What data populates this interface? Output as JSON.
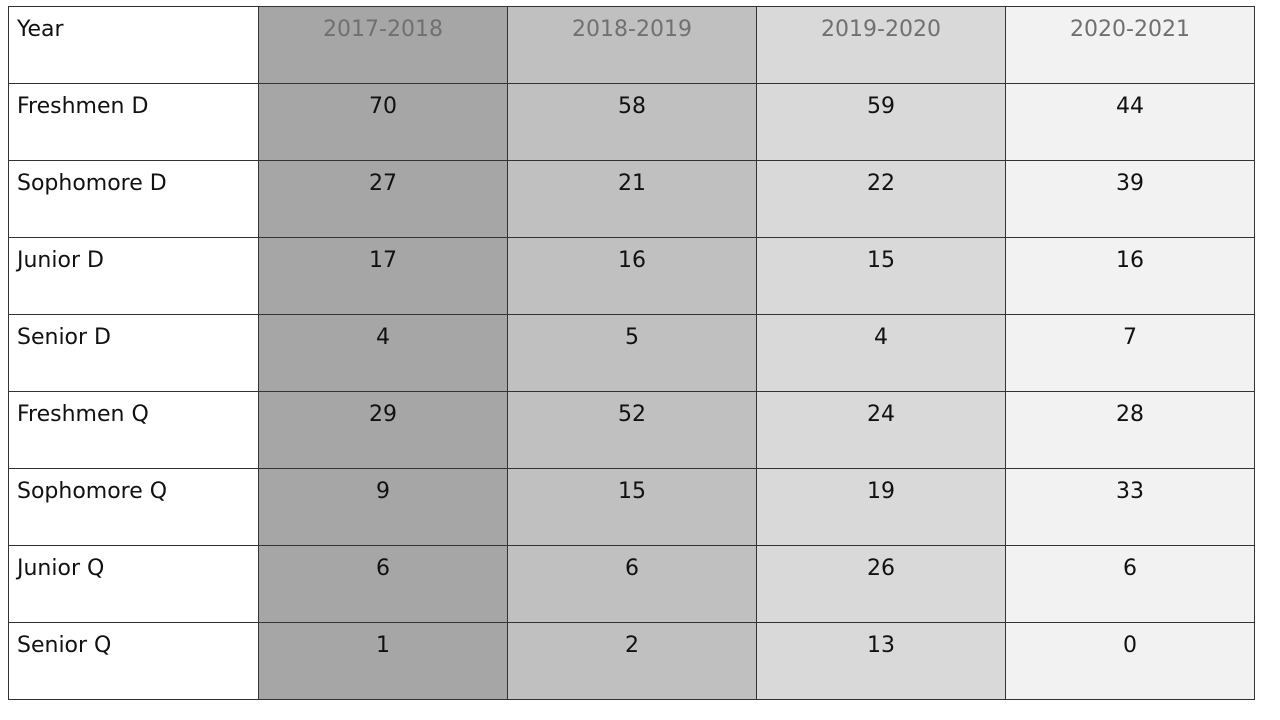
{
  "chart_data": {
    "type": "table",
    "row_header_label": "Year",
    "columns": [
      "2017-2018",
      "2018-2019",
      "2019-2020",
      "2020-2021"
    ],
    "column_colors": [
      "#a6a6a6",
      "#c0c0c0",
      "#d9d9d9",
      "#f2f2f2"
    ],
    "rows": [
      {
        "label": "Freshmen D",
        "values": [
          70,
          58,
          59,
          44
        ]
      },
      {
        "label": "Sophomore D",
        "values": [
          27,
          21,
          22,
          39
        ]
      },
      {
        "label": "Junior D",
        "values": [
          17,
          16,
          15,
          16
        ]
      },
      {
        "label": "Senior D",
        "values": [
          4,
          5,
          4,
          7
        ]
      },
      {
        "label": "Freshmen Q",
        "values": [
          29,
          52,
          24,
          28
        ]
      },
      {
        "label": "Sophomore Q",
        "values": [
          9,
          15,
          19,
          33
        ]
      },
      {
        "label": "Junior Q",
        "values": [
          6,
          6,
          26,
          6
        ]
      },
      {
        "label": "Senior Q",
        "values": [
          1,
          2,
          13,
          0
        ]
      }
    ]
  }
}
